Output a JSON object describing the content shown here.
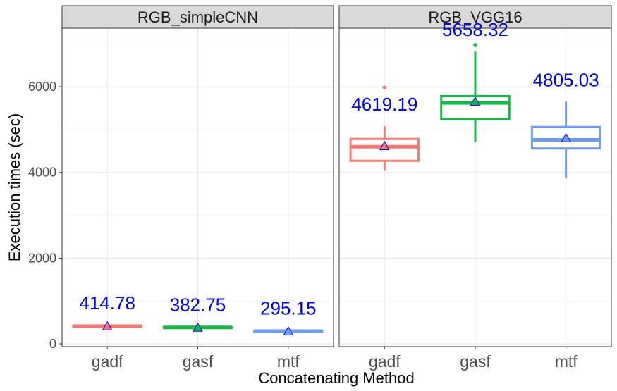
{
  "chart_data": {
    "type": "box",
    "xlabel": "Concatenating Method",
    "ylabel": "Execution times (sec)",
    "ylim": [
      0,
      7300
    ],
    "yticks": [
      0,
      2000,
      4000,
      6000
    ],
    "categories": [
      "gadf",
      "gasf",
      "mtf"
    ],
    "grid": true,
    "legend": "none",
    "colors": {
      "gadf": "#F07A72",
      "gasf": "#17B847",
      "mtf": "#6E9EEB",
      "mean_marker": "#0000EE",
      "mean_label": "#0000EE"
    },
    "panels": [
      {
        "strip": "RGB_simpleCNN",
        "boxes": [
          {
            "category": "gadf",
            "min": 385,
            "q1": 400,
            "median": 412,
            "q3": 425,
            "max": 440,
            "mean": 414.78,
            "mean_label": "414.78",
            "outliers": []
          },
          {
            "category": "gasf",
            "min": 358,
            "q1": 372,
            "median": 382,
            "q3": 392,
            "max": 405,
            "mean": 382.75,
            "mean_label": "382.75",
            "outliers": []
          },
          {
            "category": "mtf",
            "min": 272,
            "q1": 285,
            "median": 295,
            "q3": 305,
            "max": 318,
            "mean": 295.15,
            "mean_label": "295.15",
            "outliers": []
          }
        ]
      },
      {
        "strip": "RGB_VGG16",
        "boxes": [
          {
            "category": "gadf",
            "min": 4040,
            "q1": 4270,
            "median": 4600,
            "q3": 4780,
            "max": 5080,
            "mean": 4619.19,
            "mean_label": "4619.19",
            "outliers": [
              5980
            ]
          },
          {
            "category": "gasf",
            "min": 4710,
            "q1": 5240,
            "median": 5620,
            "q3": 5780,
            "max": 6820,
            "mean": 5658.32,
            "mean_label": "5658.32",
            "outliers": [
              6970
            ]
          },
          {
            "category": "mtf",
            "min": 3870,
            "q1": 4560,
            "median": 4760,
            "q3": 5060,
            "max": 5650,
            "mean": 4805.03,
            "mean_label": "4805.03",
            "outliers": []
          }
        ]
      }
    ]
  }
}
